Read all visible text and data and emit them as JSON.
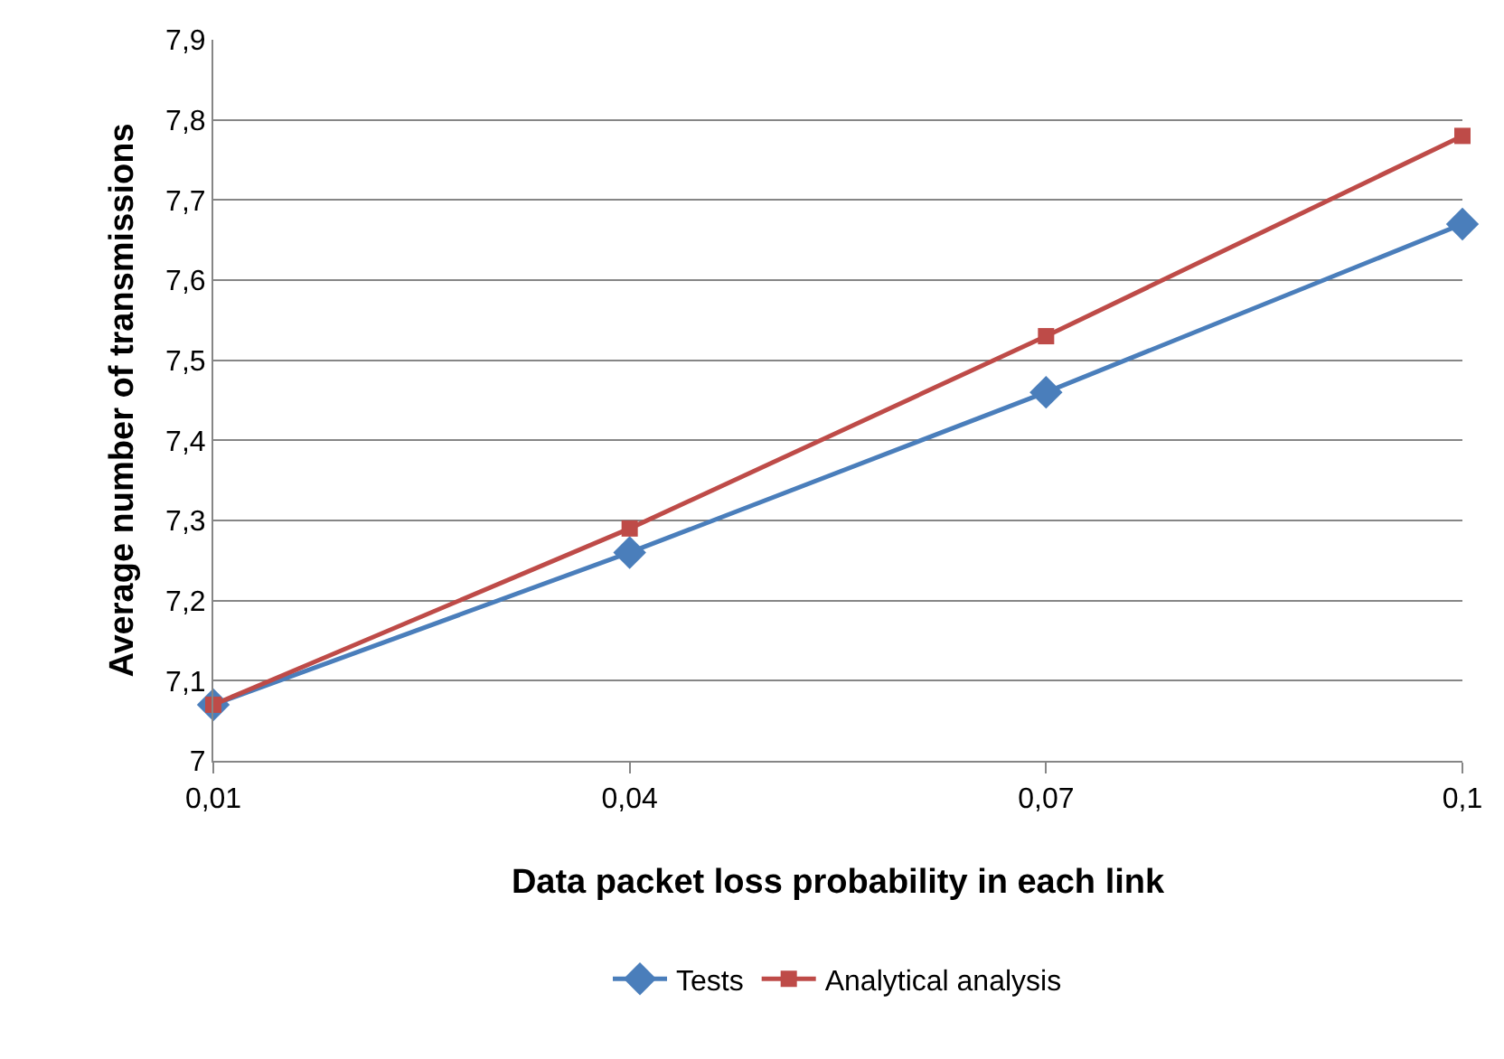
{
  "chart_data": {
    "type": "line",
    "xlabel": "Data packet loss probability in each link",
    "ylabel": "Average number of transmissions",
    "categories": [
      "0,01",
      "0,04",
      "0,07",
      "0,1"
    ],
    "series": [
      {
        "name": "Tests",
        "color": "#4a7ebb",
        "marker": "diamond",
        "values": [
          7.07,
          7.26,
          7.46,
          7.67
        ]
      },
      {
        "name": "Analytical analysis",
        "color": "#be4b48",
        "marker": "square",
        "values": [
          7.07,
          7.29,
          7.53,
          7.78
        ]
      }
    ],
    "ylim": [
      7,
      7.9
    ],
    "yticks": [
      7,
      {
        "value": 7.1,
        "label": "7,1"
      },
      {
        "value": 7.2,
        "label": "7,2"
      },
      {
        "value": 7.3,
        "label": "7,3"
      },
      {
        "value": 7.4,
        "label": "7,4"
      },
      {
        "value": 7.5,
        "label": "7,5"
      },
      {
        "value": 7.6,
        "label": "7,6"
      },
      {
        "value": 7.7,
        "label": "7,7"
      },
      {
        "value": 7.8,
        "label": "7,8"
      },
      {
        "value": 7.9,
        "label": "7,9"
      }
    ],
    "grid": "y",
    "legend": "bottom",
    "line_style": "solid"
  }
}
